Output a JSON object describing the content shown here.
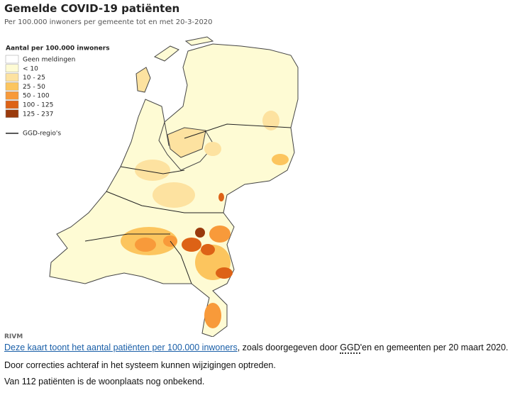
{
  "header": {
    "title": "Gemelde COVID-19 patiënten",
    "subtitle": "Per 100.000 inwoners per gemeente tot en met 20-3-2020"
  },
  "legend": {
    "title": "Aantal per 100.000 inwoners",
    "items": [
      {
        "label": "Geen meldingen",
        "color": "#ffffff"
      },
      {
        "label": "< 10",
        "color": "#fefbd4"
      },
      {
        "label": "10 - 25",
        "color": "#fde2a0"
      },
      {
        "label": "25 - 50",
        "color": "#fcc55e"
      },
      {
        "label": "50 - 100",
        "color": "#f89a3a"
      },
      {
        "label": "100 - 125",
        "color": "#dd6216"
      },
      {
        "label": "125 - 237",
        "color": "#9a3a0c"
      }
    ],
    "line_label": "GGD-regio's"
  },
  "source": "RIVM",
  "caption": {
    "link": "Deze kaart toont het aantal patiënten per 100.000 inwoners",
    "part1": ", zoals doorgegeven door ",
    "abbr": "GGD",
    "part2": "'en en gemeenten per 20 maart 2020.",
    "line2": "Door correcties achteraf in het systeem kunnen wijzigingen optreden.",
    "line3": "Van 112 patiënten is de woonplaats nog onbekend."
  }
}
